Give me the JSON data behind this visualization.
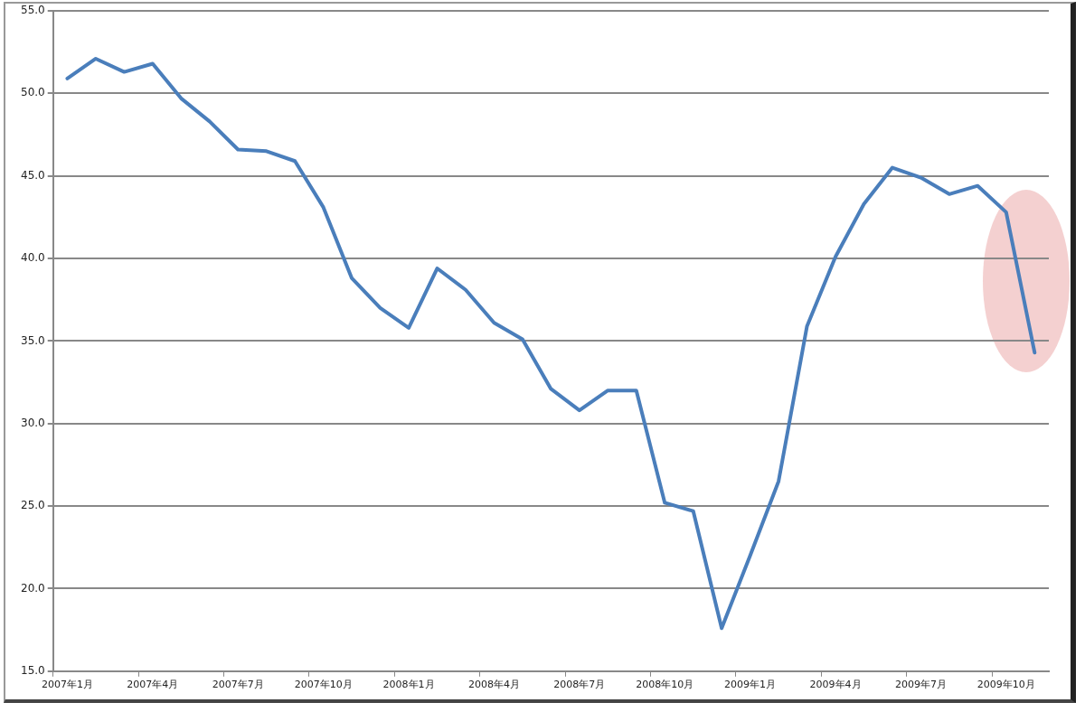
{
  "chart_data": {
    "type": "line",
    "categories": [
      "2007年1月",
      null,
      null,
      "2007年4月",
      null,
      null,
      "2007年7月",
      null,
      null,
      "2007年10月",
      null,
      null,
      "2008年1月",
      null,
      null,
      "2008年4月",
      null,
      null,
      "2008年7月",
      null,
      null,
      "2008年10月",
      null,
      null,
      "2009年1月",
      null,
      null,
      "2009年4月",
      null,
      null,
      "2009年7月",
      null,
      null,
      "2009年10月",
      null
    ],
    "series": [
      {
        "color": "#4a7ebb",
        "values": [
          50.9,
          52.1,
          51.3,
          51.8,
          49.7,
          48.3,
          46.6,
          46.5,
          45.9,
          43.1,
          38.8,
          37.0,
          35.8,
          39.4,
          38.1,
          36.1,
          35.1,
          32.1,
          30.8,
          32.0,
          32.0,
          25.2,
          24.7,
          17.6,
          22.0,
          26.5,
          35.9,
          40.1,
          43.3,
          45.5,
          44.9,
          43.9,
          44.4,
          42.8,
          34.3
        ]
      }
    ],
    "ylim": [
      15,
      55
    ],
    "yticks": [
      {
        "value": 15,
        "label": "15.0"
      },
      {
        "value": 20,
        "label": "20.0"
      },
      {
        "value": 25,
        "label": "25.0"
      },
      {
        "value": 30,
        "label": "30.0"
      },
      {
        "value": 35,
        "label": "35.0"
      },
      {
        "value": 40,
        "label": "40.0"
      },
      {
        "value": 45,
        "label": "45.0"
      },
      {
        "value": 50,
        "label": "50.0"
      },
      {
        "value": 55,
        "label": "55.0"
      }
    ],
    "grid": "y",
    "legend": false,
    "marker": "none",
    "line_style": "solid"
  }
}
